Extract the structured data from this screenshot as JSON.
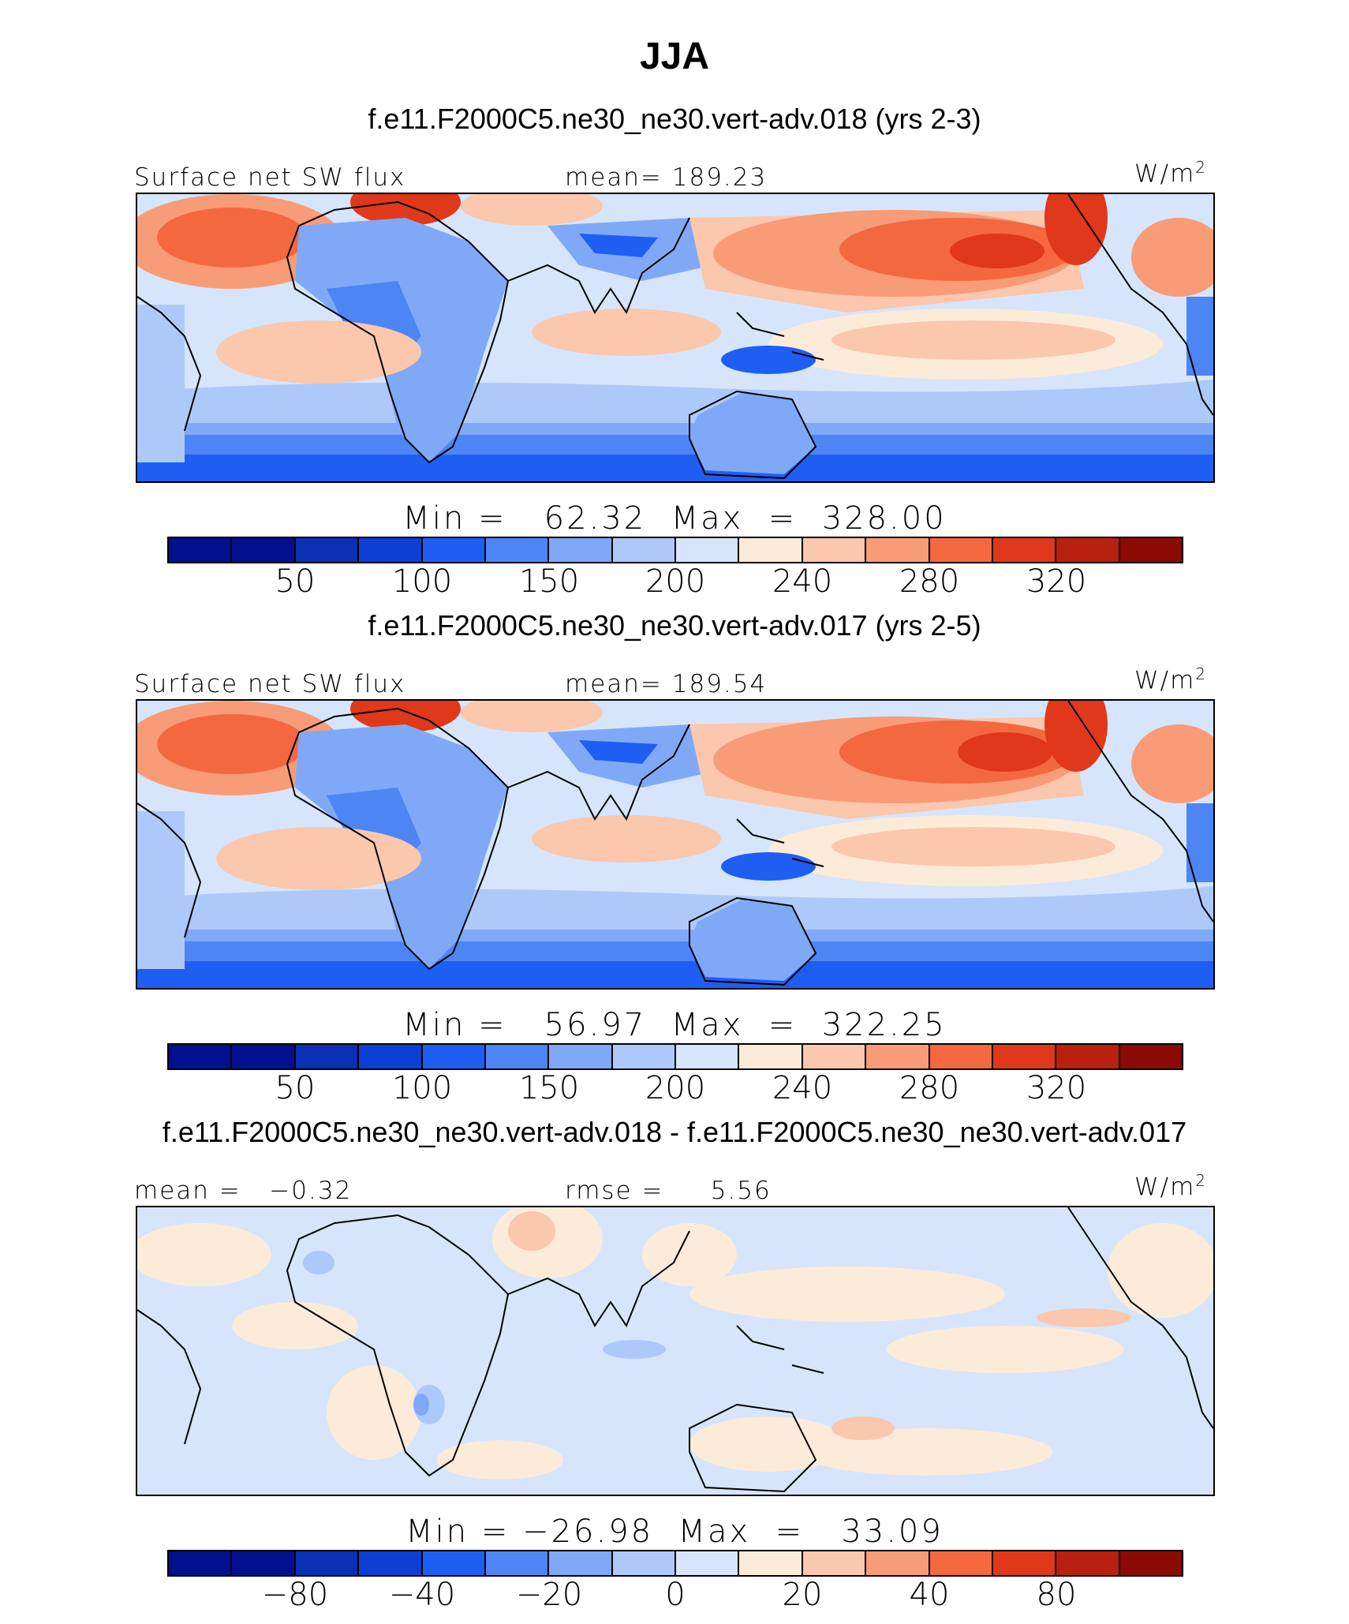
{
  "title": "JJA",
  "units": "W/m",
  "units_exp": "2",
  "palette": [
    "#00108f",
    "#0a2fb3",
    "#0d3fd4",
    "#1f5ef2",
    "#4d85f5",
    "#7fa9f7",
    "#adc9f9",
    "#d6e5fb",
    "#fdebd9",
    "#fbc7ad",
    "#f89b77",
    "#f4683f",
    "#e0381b",
    "#b8200f",
    "#8a0b05"
  ],
  "panels": [
    {
      "case": "f.e11.F2000C5.ne30_ne30.vert-adv.018 (yrs 2-3)",
      "left_label": "Surface net SW flux",
      "center_label": "mean= 189.23",
      "minmax": "Min =   62.32  Max  =  328.00",
      "ticks": [
        "50",
        "100",
        "150",
        "200",
        "240",
        "280",
        "320"
      ]
    },
    {
      "case": "f.e11.F2000C5.ne30_ne30.vert-adv.017 (yrs 2-5)",
      "left_label": "Surface net SW flux",
      "center_label": "mean= 189.54",
      "minmax": "Min =   56.97  Max  =  322.25",
      "ticks": [
        "50",
        "100",
        "150",
        "200",
        "240",
        "280",
        "320"
      ]
    },
    {
      "case": "f.e11.F2000C5.ne30_ne30.vert-adv.018 - f.e11.F2000C5.ne30_ne30.vert-adv.017",
      "left_label": "mean =   −0.32",
      "center_label": "rmse =     5.56",
      "minmax": "Min = −26.98  Max  =   33.09",
      "ticks": [
        "−80",
        "−40",
        "−20",
        "0",
        "20",
        "40",
        "80"
      ]
    }
  ]
}
